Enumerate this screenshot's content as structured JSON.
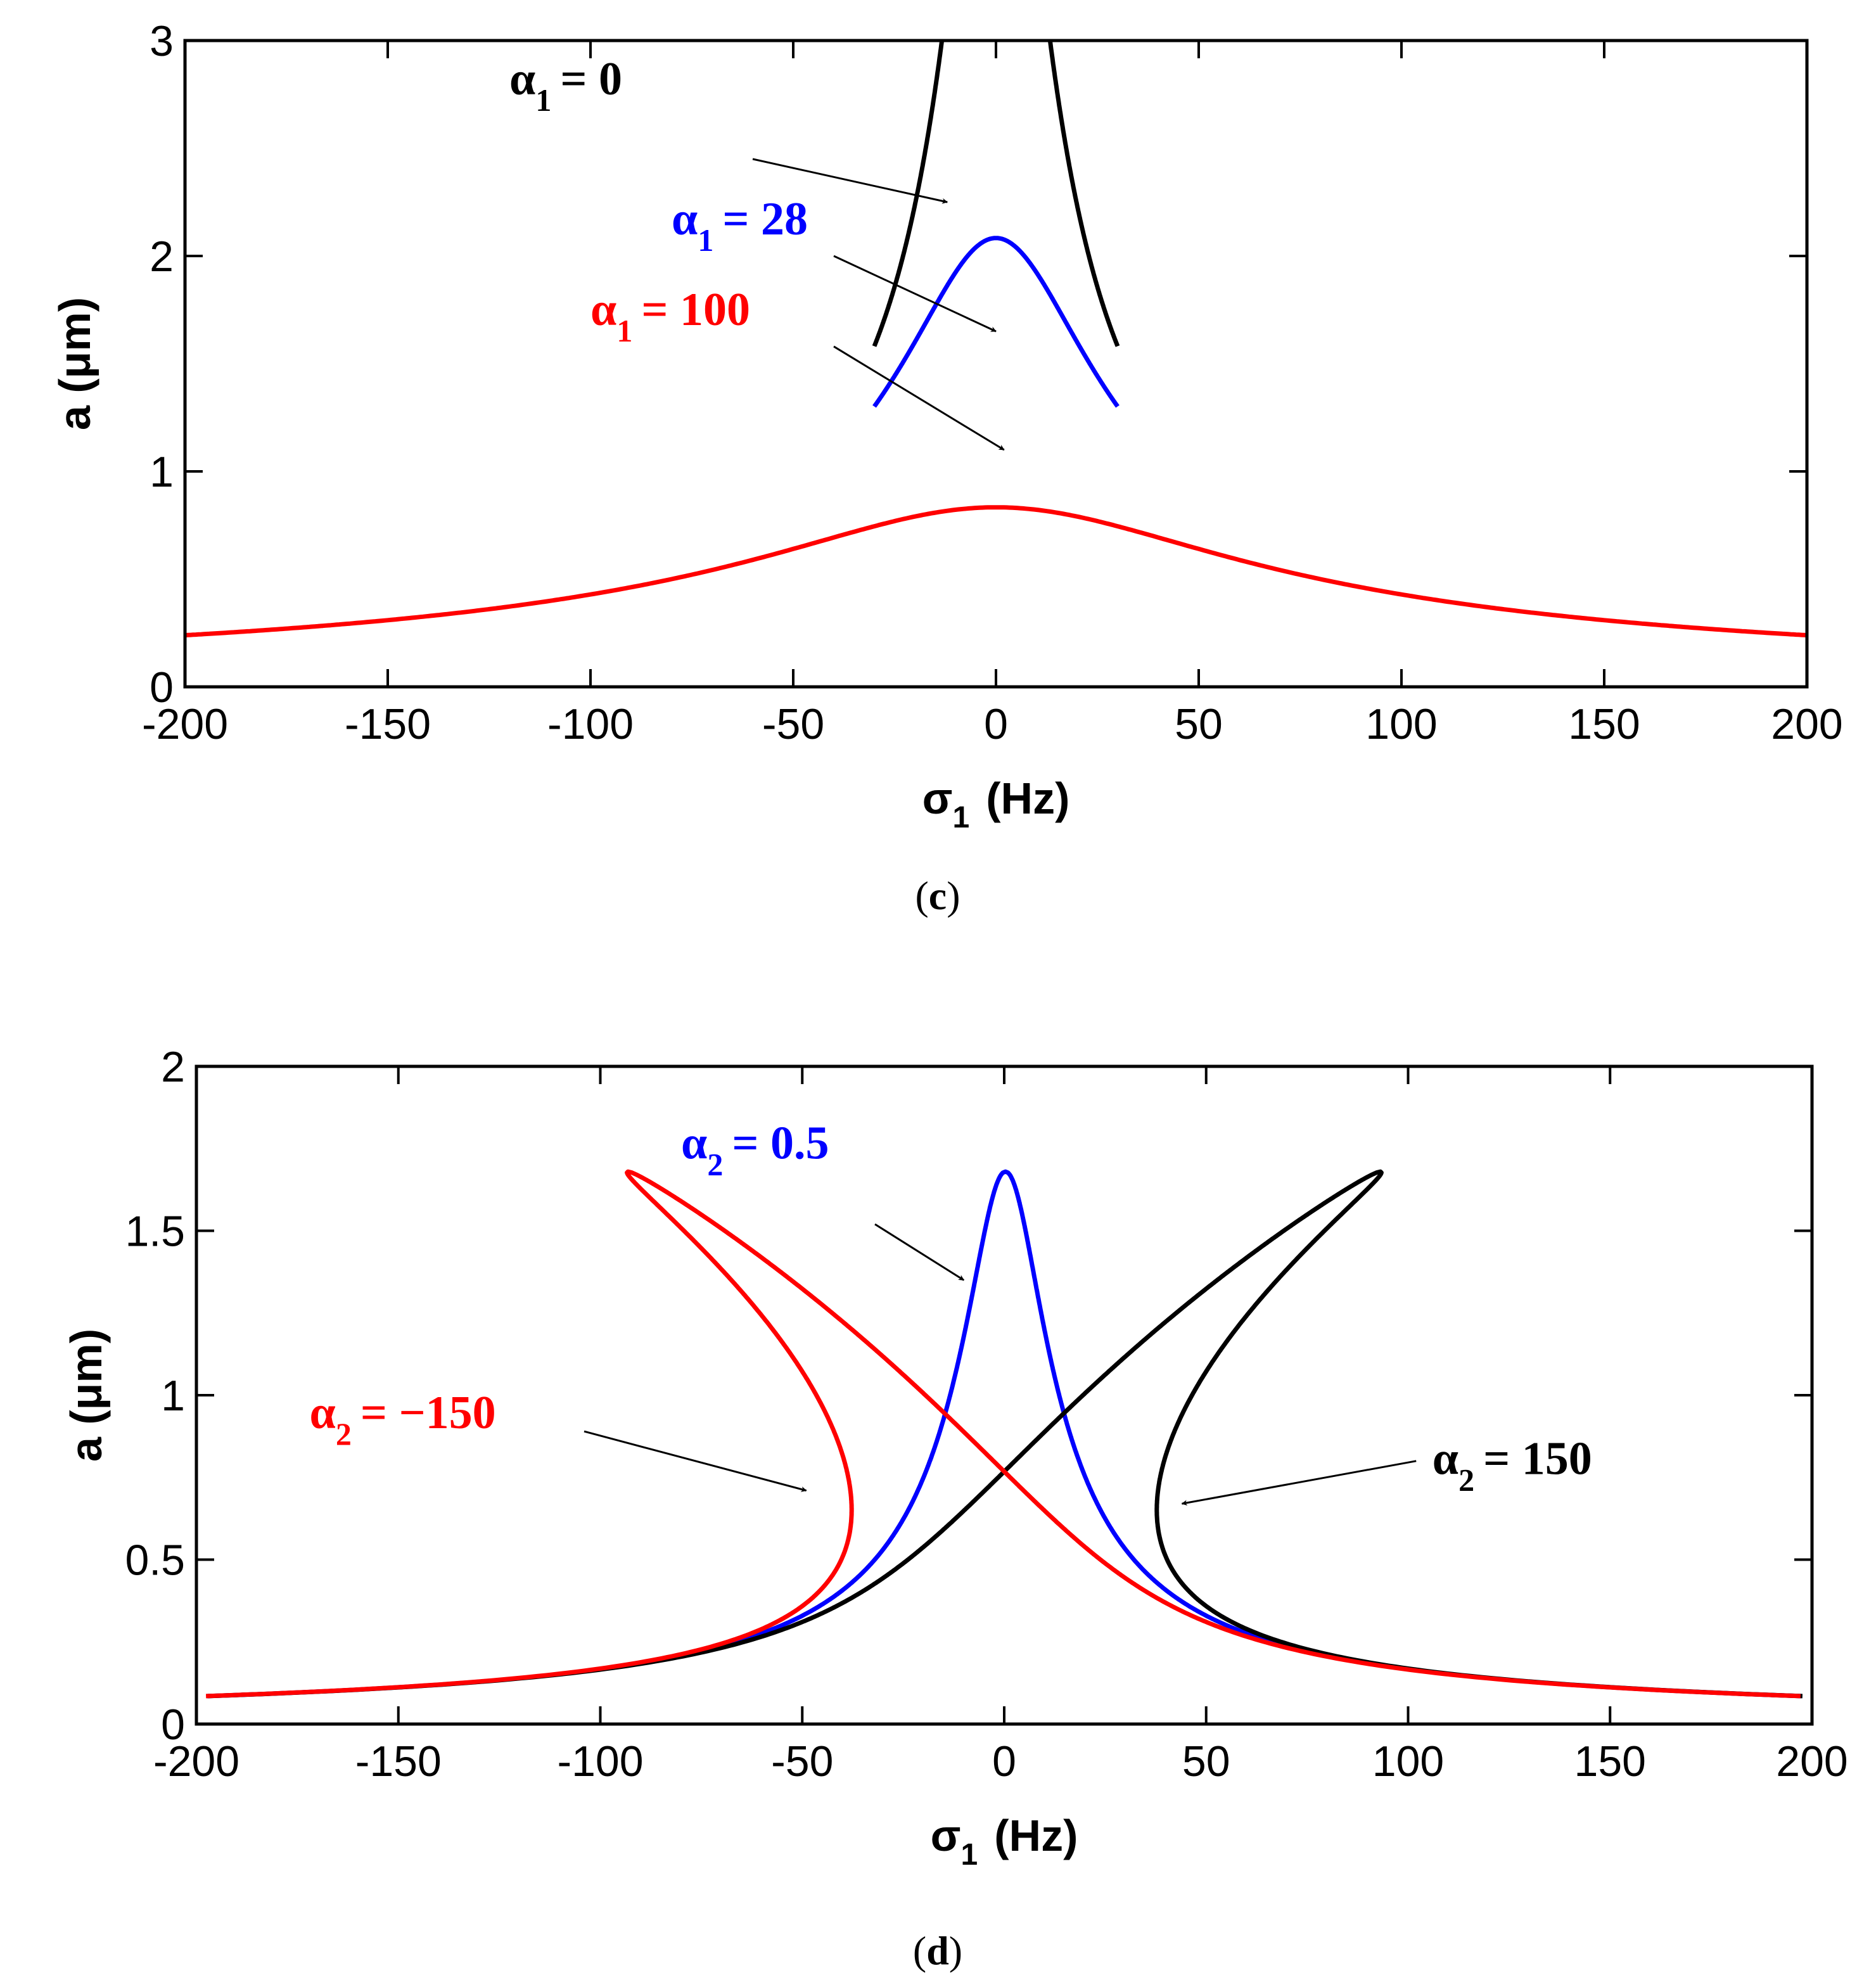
{
  "colors": {
    "black": "#000000",
    "blue": "#0000ff",
    "red": "#ff0000"
  },
  "chart_data": [
    {
      "panel": "c",
      "caption": {
        "open": "(",
        "letter": "c",
        "close": ")"
      },
      "type": "line",
      "xlabel": {
        "symbol": "σ",
        "sub": "1",
        "unit": "(Hz)"
      },
      "ylabel": "a (μm)",
      "xlim": [
        -200,
        200
      ],
      "ylim": [
        0,
        3
      ],
      "xticks": [
        "-200",
        "-150",
        "-100",
        "-50",
        "0",
        "50",
        "100",
        "150",
        "200"
      ],
      "yticks": [
        "0",
        "1",
        "2",
        "3"
      ],
      "series": [
        {
          "name": "α1 = 0",
          "color": "black",
          "model": "lorentz",
          "peak": 5.0,
          "gamma": 20,
          "center": 0,
          "x": [
            -30,
            30
          ]
        },
        {
          "name": "α1 = 28",
          "color": "blue",
          "model": "lorentz_sat",
          "peak": 5.0,
          "gamma": 20,
          "alpha": 28,
          "center": 0,
          "x": [
            -30,
            30
          ]
        },
        {
          "name": "α1 = 100",
          "color": "red",
          "model": "lorentz_sat",
          "peak": 5.0,
          "gamma": 20,
          "alpha": 100,
          "center": 0,
          "x": [
            -200,
            200
          ]
        }
      ],
      "annotations": [
        {
          "sym": "α",
          "sub": "1",
          "value": "= 0",
          "color": "black",
          "text_x": -120,
          "text_y": 2.75,
          "arrow_from": [
            -60,
            2.45
          ],
          "arrow_to": [
            -12,
            2.25
          ]
        },
        {
          "sym": "α",
          "sub": "1",
          "value": "= 28",
          "color": "blue",
          "text_x": -80,
          "text_y": 2.1,
          "arrow_from": [
            -40,
            2.0
          ],
          "arrow_to": [
            0,
            1.65
          ]
        },
        {
          "sym": "α",
          "sub": "1",
          "value": "= 100",
          "color": "red",
          "text_x": -100,
          "text_y": 1.68,
          "arrow_from": [
            -40,
            1.58
          ],
          "arrow_to": [
            2,
            1.1
          ]
        }
      ]
    },
    {
      "panel": "d",
      "caption": {
        "open": "(",
        "letter": "d",
        "close": ")"
      },
      "type": "line",
      "xlabel": {
        "symbol": "σ",
        "sub": "1",
        "unit": "(Hz)"
      },
      "ylabel": "a (μm)",
      "xlim": [
        -200,
        200
      ],
      "ylim": [
        0,
        2
      ],
      "xticks": [
        "-200",
        "-150",
        "-100",
        "-50",
        "0",
        "50",
        "100",
        "150",
        "200"
      ],
      "yticks": [
        "0",
        "0.5",
        "1",
        "1.5",
        "2"
      ],
      "series": [
        {
          "name": "α2 = 0.5",
          "color": "blue",
          "model": "backbone",
          "amax": 1.68,
          "gamma": 20,
          "alpha2": 0.5
        },
        {
          "name": "α2 = 150",
          "color": "black",
          "model": "backbone",
          "amax": 1.68,
          "gamma": 20,
          "alpha2": 150
        },
        {
          "name": "α2 = −150",
          "color": "red",
          "model": "backbone",
          "amax": 1.68,
          "gamma": 20,
          "alpha2": -150
        }
      ],
      "annotations": [
        {
          "sym": "α",
          "sub": "2",
          "value": "= 0.5",
          "color": "blue",
          "text_x": -80,
          "text_y": 1.72,
          "arrow_from": [
            -32,
            1.52
          ],
          "arrow_to": [
            -10,
            1.35
          ]
        },
        {
          "sym": "α",
          "sub": "2",
          "value": "= 150",
          "color": "black",
          "text_x": 106,
          "text_y": 0.76,
          "arrow_from": [
            102,
            0.8
          ],
          "arrow_to": [
            44,
            0.67
          ]
        },
        {
          "sym": "α",
          "sub": "2",
          "value": "= −150",
          "color": "red",
          "text_x": -172,
          "text_y": 0.9,
          "arrow_from": [
            -104,
            0.89
          ],
          "arrow_to": [
            -49,
            0.71
          ]
        }
      ]
    }
  ]
}
